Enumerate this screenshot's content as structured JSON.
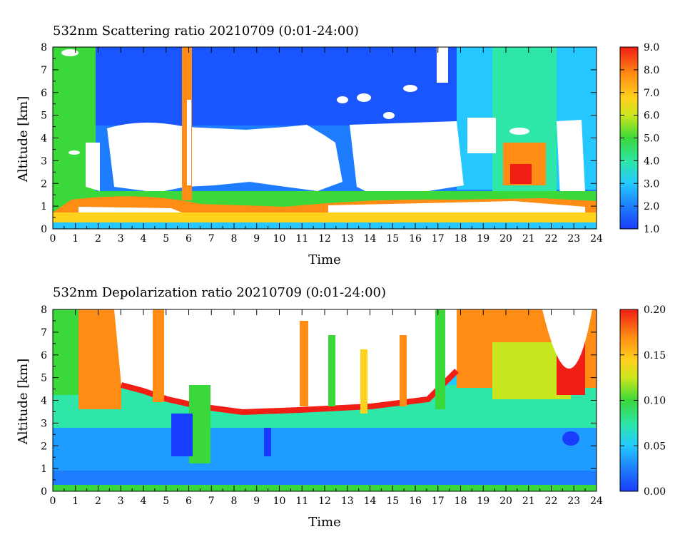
{
  "chart_data": [
    {
      "type": "heatmap",
      "title": "532nm Scattering ratio  20210709 (0:01-24:00)",
      "xlabel": "Time",
      "ylabel": "Altitude [km]",
      "xlim": [
        0,
        24
      ],
      "ylim": [
        0,
        8
      ],
      "x_ticks": [
        "0",
        "1",
        "2",
        "3",
        "4",
        "5",
        "6",
        "7",
        "8",
        "9",
        "10",
        "11",
        "12",
        "13",
        "14",
        "15",
        "16",
        "17",
        "18",
        "19",
        "20",
        "21",
        "22",
        "23",
        "24"
      ],
      "y_ticks": [
        "0",
        "1",
        "2",
        "3",
        "4",
        "5",
        "6",
        "7",
        "8"
      ],
      "colorbar": {
        "min": 1.0,
        "max": 9.0,
        "tick_labels": [
          "1.0",
          "2.0",
          "3.0",
          "4.0",
          "5.0",
          "6.0",
          "7.0",
          "8.0",
          "9.0"
        ]
      },
      "masked_color": "#ffffff",
      "features": {
        "cloud_base_km": 1.2,
        "mask_region": "white (no data / clouds) mostly 1.5-5 km from 3h to 19h",
        "high_values": "red/orange near 0.5-1.5 km and at 6h, 19-21h"
      }
    },
    {
      "type": "heatmap",
      "title": "532nm Depolarization ratio  20210709 (0:01-24:00)",
      "xlabel": "Time",
      "ylabel": "Altitude [km]",
      "xlim": [
        0,
        24
      ],
      "ylim": [
        0,
        8
      ],
      "x_ticks": [
        "0",
        "1",
        "2",
        "3",
        "4",
        "5",
        "6",
        "7",
        "8",
        "9",
        "10",
        "11",
        "12",
        "13",
        "14",
        "15",
        "16",
        "17",
        "18",
        "19",
        "20",
        "21",
        "22",
        "23",
        "24"
      ],
      "y_ticks": [
        "0",
        "1",
        "2",
        "3",
        "4",
        "5",
        "6",
        "7",
        "8"
      ],
      "colorbar": {
        "min": 0.0,
        "max": 0.2,
        "tick_labels": [
          "0.00",
          "0.05",
          "0.10",
          "0.15",
          "0.20"
        ]
      },
      "masked_color": "#ffffff",
      "features": {
        "top_of_valid_data_km": 3.5,
        "mask_region": "white above ~4-5 km between 3h and 19h",
        "high_values": "red/orange along upper boundary of valid data"
      }
    }
  ]
}
